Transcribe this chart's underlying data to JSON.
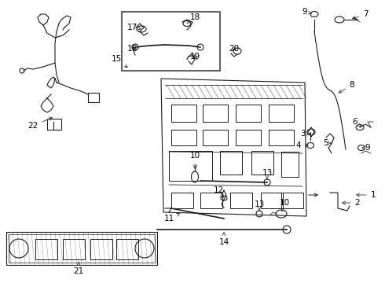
{
  "bg_color": "#ffffff",
  "line_color": "#1a1a1a",
  "fig_width": 4.9,
  "fig_height": 3.6,
  "dpi": 100,
  "font_size": 7.5,
  "lw": 0.8
}
